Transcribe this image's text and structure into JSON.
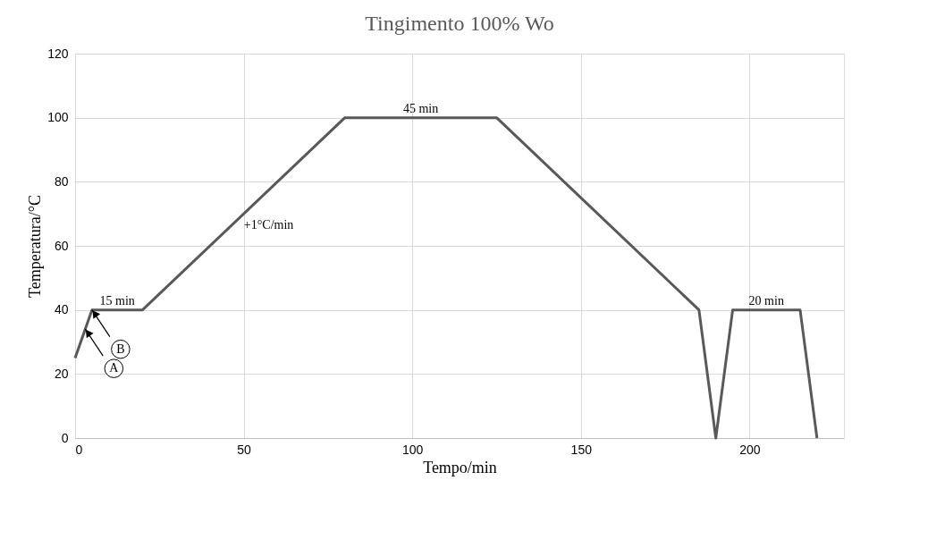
{
  "chart_data": {
    "type": "line",
    "title": "Tingimento 100% Wo",
    "xlabel": "Tempo/min",
    "ylabel": "Temperatura/°C",
    "x": [
      0,
      5,
      20,
      80,
      125,
      185,
      190,
      195,
      215,
      220
    ],
    "series": [
      {
        "color": "#595959",
        "values": [
          25,
          40,
          40,
          100,
          100,
          40,
          0,
          40,
          40,
          0
        ]
      }
    ],
    "xlim": [
      0,
      228
    ],
    "xticks": [
      0,
      50,
      100,
      150,
      200
    ],
    "ylim": [
      0,
      120
    ],
    "yticks": [
      0,
      20,
      40,
      60,
      80,
      100,
      120
    ],
    "grid": true,
    "marker": "none",
    "line_style": "solid",
    "annotations": [
      {
        "text": "15 min",
        "x": 12.5,
        "y": 40
      },
      {
        "text": "+1°C/min",
        "x": 50,
        "y": 70
      },
      {
        "text": "45 min",
        "x": 102.5,
        "y": 100
      },
      {
        "text": "20 min",
        "x": 205,
        "y": 40
      },
      {
        "text": "A",
        "x": 3,
        "y": 34
      },
      {
        "text": "B",
        "x": 5,
        "y": 40
      }
    ]
  }
}
